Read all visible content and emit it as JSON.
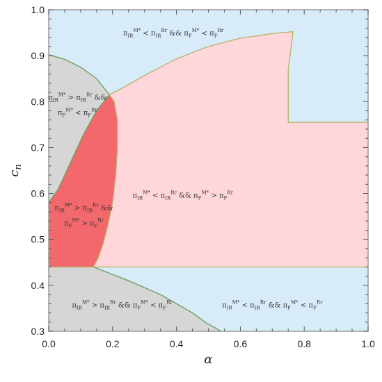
{
  "chart_data": {
    "type": "area",
    "xlabel": "α",
    "ylabel": "c",
    "ylabel_sub": "n",
    "xlim": [
      0,
      1
    ],
    "ylim": [
      0.3,
      1.0
    ],
    "x_ticks": [
      0.0,
      0.2,
      0.4,
      0.6,
      0.8,
      1.0
    ],
    "y_ticks": [
      0.3,
      0.4,
      0.5,
      0.6,
      0.7,
      0.8,
      0.9,
      1.0
    ],
    "x_tick_labels": [
      "0.0",
      "0.2",
      "0.4",
      "0.6",
      "0.8",
      "1.0"
    ],
    "y_tick_labels": [
      "0.3",
      "0.4",
      "0.5",
      "0.6",
      "0.7",
      "0.8",
      "0.9",
      "1.0"
    ],
    "grid": false,
    "colors": {
      "blue": "#d8ebf8",
      "pink": "#ffd7da",
      "red": "#f2686c",
      "gray": "#d6d6d6",
      "line_green": "#6ea15a",
      "line_yellow": "#b8b36e",
      "frame": "#9a9a9a"
    },
    "regions": [
      {
        "name": "lower-left-gray",
        "color": "gray",
        "points": [
          [
            0,
            0.3
          ],
          [
            0,
            0.44
          ],
          [
            0.14,
            0.44
          ],
          [
            0.25,
            0.41
          ],
          [
            0.35,
            0.38
          ],
          [
            0.45,
            0.34
          ],
          [
            0.49,
            0.32
          ],
          [
            0.54,
            0.3
          ]
        ]
      },
      {
        "name": "upper-left-gray",
        "color": "gray",
        "points": [
          [
            0,
            0.58
          ],
          [
            0.03,
            0.61
          ],
          [
            0.07,
            0.67
          ],
          [
            0.11,
            0.73
          ],
          [
            0.15,
            0.78
          ],
          [
            0.19,
            0.815
          ],
          [
            0.15,
            0.85
          ],
          [
            0.1,
            0.875
          ],
          [
            0.05,
            0.892
          ],
          [
            0,
            0.902
          ]
        ]
      },
      {
        "name": "pink-region",
        "color": "pink",
        "points": [
          [
            0.14,
            0.44
          ],
          [
            1.0,
            0.44
          ],
          [
            1.0,
            0.755
          ],
          [
            0.75,
            0.755
          ],
          [
            0.75,
            0.87
          ],
          [
            0.765,
            0.952
          ],
          [
            0.7,
            0.948
          ],
          [
            0.6,
            0.938
          ],
          [
            0.5,
            0.92
          ],
          [
            0.4,
            0.893
          ],
          [
            0.3,
            0.857
          ],
          [
            0.24,
            0.833
          ],
          [
            0.19,
            0.815
          ],
          [
            0.205,
            0.8
          ],
          [
            0.215,
            0.76
          ],
          [
            0.215,
            0.7
          ],
          [
            0.21,
            0.64
          ],
          [
            0.2,
            0.58
          ],
          [
            0.185,
            0.53
          ],
          [
            0.17,
            0.49
          ],
          [
            0.155,
            0.46
          ]
        ]
      },
      {
        "name": "red-region",
        "color": "red",
        "points": [
          [
            0,
            0.44
          ],
          [
            0.14,
            0.44
          ],
          [
            0.155,
            0.46
          ],
          [
            0.17,
            0.49
          ],
          [
            0.185,
            0.53
          ],
          [
            0.2,
            0.58
          ],
          [
            0.21,
            0.64
          ],
          [
            0.215,
            0.7
          ],
          [
            0.215,
            0.76
          ],
          [
            0.205,
            0.8
          ],
          [
            0.19,
            0.815
          ],
          [
            0.15,
            0.78
          ],
          [
            0.11,
            0.73
          ],
          [
            0.07,
            0.67
          ],
          [
            0.03,
            0.61
          ],
          [
            0,
            0.58
          ]
        ]
      }
    ],
    "boundaries": [
      {
        "color": "line_green",
        "points": [
          [
            0,
            0.902
          ],
          [
            0.05,
            0.892
          ],
          [
            0.1,
            0.875
          ],
          [
            0.15,
            0.85
          ],
          [
            0.19,
            0.815
          ],
          [
            0.15,
            0.78
          ],
          [
            0.11,
            0.73
          ],
          [
            0.07,
            0.67
          ],
          [
            0.03,
            0.61
          ],
          [
            0,
            0.58
          ]
        ]
      },
      {
        "color": "line_green",
        "points": [
          [
            0.14,
            0.44
          ],
          [
            0.25,
            0.41
          ],
          [
            0.35,
            0.38
          ],
          [
            0.45,
            0.34
          ],
          [
            0.49,
            0.32
          ],
          [
            0.54,
            0.3
          ]
        ]
      },
      {
        "color": "line_yellow",
        "points": [
          [
            0.19,
            0.815
          ],
          [
            0.24,
            0.833
          ],
          [
            0.3,
            0.857
          ],
          [
            0.4,
            0.893
          ],
          [
            0.5,
            0.92
          ],
          [
            0.6,
            0.938
          ],
          [
            0.7,
            0.948
          ],
          [
            0.765,
            0.952
          ],
          [
            0.75,
            0.87
          ],
          [
            0.75,
            0.755
          ],
          [
            1.0,
            0.755
          ]
        ]
      },
      {
        "color": "line_yellow",
        "points": [
          [
            0,
            0.44
          ],
          [
            1.0,
            0.44
          ]
        ]
      },
      {
        "color": "line_yellow",
        "points": [
          [
            0.14,
            0.44
          ],
          [
            0.155,
            0.46
          ],
          [
            0.17,
            0.49
          ],
          [
            0.185,
            0.53
          ],
          [
            0.2,
            0.58
          ],
          [
            0.21,
            0.64
          ],
          [
            0.215,
            0.7
          ],
          [
            0.215,
            0.76
          ],
          [
            0.205,
            0.8
          ],
          [
            0.19,
            0.815
          ]
        ]
      }
    ],
    "annotations": [
      {
        "id": "ann-top",
        "lines": [
          [
            [
              "π",
              ""
            ],
            [
              "IR",
              "sub"
            ],
            [
              "M*",
              "sup"
            ],
            [
              " < π",
              ""
            ],
            [
              "IR",
              "sub"
            ],
            [
              "Rr",
              "sup"
            ],
            [
              " && π",
              ""
            ],
            [
              "F",
              "sub"
            ],
            [
              "M*",
              "sup"
            ],
            [
              " < π",
              ""
            ],
            [
              "F",
              "sub"
            ],
            [
              "Rr",
              "sup"
            ]
          ]
        ],
        "x": 0.39,
        "y": 0.95
      },
      {
        "id": "ann-upper-left",
        "lines": [
          [
            [
              "π",
              ""
            ],
            [
              "IR",
              "sub"
            ],
            [
              "M*",
              "sup"
            ],
            [
              " > π",
              ""
            ],
            [
              "IR",
              "sub"
            ],
            [
              "Rr",
              "sup"
            ],
            [
              " &&",
              ""
            ]
          ],
          [
            [
              "π",
              ""
            ],
            [
              "F",
              "sub"
            ],
            [
              "M*",
              "sup"
            ],
            [
              " < π",
              ""
            ],
            [
              "F",
              "sub"
            ],
            [
              "Rr",
              "sup"
            ]
          ]
        ],
        "x": 0.09,
        "y": 0.81
      },
      {
        "id": "ann-red",
        "lines": [
          [
            [
              "π",
              ""
            ],
            [
              "IR",
              "sub"
            ],
            [
              "M*",
              "sup"
            ],
            [
              " > π",
              ""
            ],
            [
              "IR",
              "sub"
            ],
            [
              "Rr",
              "sup"
            ],
            [
              " &&",
              ""
            ]
          ],
          [
            [
              "π",
              ""
            ],
            [
              "F",
              "sub"
            ],
            [
              "M*",
              "sup"
            ],
            [
              " > π",
              ""
            ],
            [
              "F",
              "sub"
            ],
            [
              "Rr",
              "sup"
            ]
          ]
        ],
        "x": 0.11,
        "y": 0.57
      },
      {
        "id": "ann-pink",
        "lines": [
          [
            [
              "π",
              ""
            ],
            [
              "IR",
              "sub"
            ],
            [
              "M*",
              "sup"
            ],
            [
              " < π",
              ""
            ],
            [
              "IR",
              "sub"
            ],
            [
              "Rr",
              "sup"
            ],
            [
              " && π",
              ""
            ],
            [
              "F",
              "sub"
            ],
            [
              "M*",
              "sup"
            ],
            [
              " > π",
              ""
            ],
            [
              "F",
              "sub"
            ],
            [
              "Rr",
              "sup"
            ]
          ]
        ],
        "x": 0.42,
        "y": 0.597
      },
      {
        "id": "ann-bottom-left",
        "lines": [
          [
            [
              "π",
              ""
            ],
            [
              "IR",
              "sub"
            ],
            [
              "M*",
              "sup"
            ],
            [
              " > π",
              ""
            ],
            [
              "IR",
              "sub"
            ],
            [
              "Rr",
              "sup"
            ],
            [
              " && π",
              ""
            ],
            [
              "F",
              "sub"
            ],
            [
              "M*",
              "sup"
            ],
            [
              " < π",
              ""
            ],
            [
              "F",
              "sub"
            ],
            [
              "Rr",
              "sup"
            ]
          ]
        ],
        "x": 0.23,
        "y": 0.358
      },
      {
        "id": "ann-bottom-right",
        "lines": [
          [
            [
              "π",
              ""
            ],
            [
              "IR",
              "sub"
            ],
            [
              "M*",
              "sup"
            ],
            [
              " < π",
              ""
            ],
            [
              "IR",
              "sub"
            ],
            [
              "Rr",
              "sup"
            ],
            [
              " && π",
              ""
            ],
            [
              "F",
              "sub"
            ],
            [
              "M*",
              "sup"
            ],
            [
              " < π",
              ""
            ],
            [
              "F",
              "sub"
            ],
            [
              "Rr",
              "sup"
            ]
          ]
        ],
        "x": 0.7,
        "y": 0.358
      }
    ]
  }
}
